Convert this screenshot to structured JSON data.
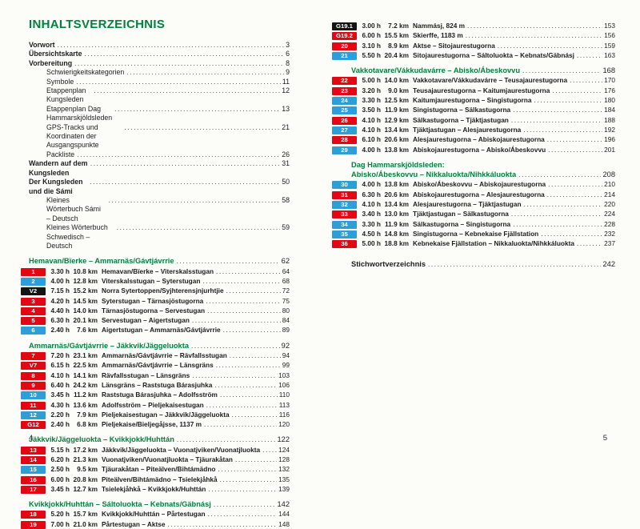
{
  "colors": {
    "accent_green": "#00813e",
    "badge_red": "#e30613",
    "badge_blue": "#2d9ed8",
    "badge_black": "#141414",
    "text": "#1d1d1b"
  },
  "left": {
    "title": "INHALTSVERZEICHNIS",
    "folio": "4",
    "front_matter": [
      {
        "label": "Vorwort",
        "page": "3",
        "bold": true,
        "indent": false
      },
      {
        "label": "Übersichtskarte",
        "page": "6",
        "bold": true,
        "indent": false
      },
      {
        "label": "Vorbereitung",
        "page": "8",
        "bold": true,
        "indent": false
      },
      {
        "label": "Schwierigkeitskategorien",
        "page": "9",
        "bold": false,
        "indent": true
      },
      {
        "label": "Symbole",
        "page": "11",
        "bold": false,
        "indent": true
      },
      {
        "label": "Etappenplan Kungsleden",
        "page": "12",
        "bold": false,
        "indent": true
      },
      {
        "label": "Etappenplan Dag Hammarskjöldsleden",
        "page": "13",
        "bold": false,
        "indent": true
      },
      {
        "label": "GPS-Tracks und Koordinaten der Ausgangspunkte",
        "page": "21",
        "bold": false,
        "indent": true
      },
      {
        "label": "Packliste",
        "page": "26",
        "bold": false,
        "indent": true
      },
      {
        "label": "Wandern auf dem Kungsleden",
        "page": "31",
        "bold": true,
        "indent": false
      },
      {
        "label": "Der Kungsleden und die Sámi",
        "page": "50",
        "bold": true,
        "indent": false
      },
      {
        "label": "Kleines Wörterbuch Sámi – Deutsch",
        "page": "58",
        "bold": false,
        "indent": true
      },
      {
        "label": "Kleines Wörterbuch Schwedisch – Deutsch",
        "page": "59",
        "bold": false,
        "indent": true
      }
    ],
    "sections": [
      {
        "title": "Hemavan/Bïerke – Ammarnäs/Gávtjávrrie",
        "page": "62",
        "stages": [
          {
            "badge": "1",
            "color": "red",
            "time": "3.30 h",
            "distance": "10.8 km",
            "route": "Hemavan/Bïerke – Viterskalsstugan",
            "page": "64"
          },
          {
            "badge": "2",
            "color": "blue",
            "time": "4.00 h",
            "distance": "12.8 km",
            "route": "Viterskalsstugan – Syterstugan",
            "page": "68"
          },
          {
            "badge": "V2",
            "color": "black",
            "time": "7.15 h",
            "distance": "15.2 km",
            "route": "Norra Sytertoppen/Syjhterensjnjurhtjie",
            "page": "72"
          },
          {
            "badge": "3",
            "color": "red",
            "time": "4.20 h",
            "distance": "14.5 km",
            "route": "Syterstugan – Tärnasjöstugorna",
            "page": "75"
          },
          {
            "badge": "4",
            "color": "red",
            "time": "4.40 h",
            "distance": "14.0 km",
            "route": "Tärnasjöstugorna – Servestugan",
            "page": "80"
          },
          {
            "badge": "5",
            "color": "red",
            "time": "6.30 h",
            "distance": "20.1 km",
            "route": "Servestugan – Aigertstugan",
            "page": "84"
          },
          {
            "badge": "6",
            "color": "blue",
            "time": "2.40 h",
            "distance": "7.6 km",
            "route": "Aigertstugan – Ammarnäs/Gávtjávrrie",
            "page": "89"
          }
        ]
      },
      {
        "title": "Ammarnäs/Gávtjávrrie – Jäkkvik/Jäggeluokta",
        "page": "92",
        "stages": [
          {
            "badge": "7",
            "color": "red",
            "time": "7.20 h",
            "distance": "23.1 km",
            "route": "Ammarnäs/Gávtjávrrie – Rävfallsstugan",
            "page": "94"
          },
          {
            "badge": "V7",
            "color": "red",
            "time": "6.15 h",
            "distance": "22.5 km",
            "route": "Ammarnäs/Gávtjávrrie – Länsgräns",
            "page": "99"
          },
          {
            "badge": "8",
            "color": "red",
            "time": "4.10 h",
            "distance": "14.1 km",
            "route": "Rävfallsstugan – Länsgräns",
            "page": "103"
          },
          {
            "badge": "9",
            "color": "red",
            "time": "6.40 h",
            "distance": "24.2 km",
            "route": "Länsgräns – Raststuga Bárasjuhka",
            "page": "106"
          },
          {
            "badge": "10",
            "color": "blue",
            "time": "3.45 h",
            "distance": "11.2 km",
            "route": "Raststuga Bárasjuhka – Adolfsström",
            "page": "110"
          },
          {
            "badge": "11",
            "color": "red",
            "time": "4.30 h",
            "distance": "13.6 km",
            "route": "Adolfsström – Pieljekaisestugan",
            "page": "113"
          },
          {
            "badge": "12",
            "color": "blue",
            "time": "2.20 h",
            "distance": "7.9 km",
            "route": "Pieljekaisestugan – Jäkkvik/Jäggeluokta",
            "page": "116"
          },
          {
            "badge": "G12",
            "color": "red",
            "time": "2.40 h",
            "distance": "6.8 km",
            "route": "Pieljekaise/Bieljegåjsse, 1137 m",
            "page": "120"
          }
        ]
      },
      {
        "title": "Jäkkvik/Jäggeluokta – Kvikkjokk/Huhttán",
        "page": "122",
        "stages": [
          {
            "badge": "13",
            "color": "red",
            "time": "5.15 h",
            "distance": "17.2 km",
            "route": "Jäkkvik/Jäggeluokta – Vuonatjviken/Vuonatjluokta",
            "page": "124"
          },
          {
            "badge": "14",
            "color": "red",
            "time": "6.20 h",
            "distance": "21.3 km",
            "route": "Vuonatjviken/Vuonatjluokta – Tjäurakåtan",
            "page": "128"
          },
          {
            "badge": "15",
            "color": "blue",
            "time": "2.50 h",
            "distance": "9.5 km",
            "route": "Tjäurakåtan – Piteälven/Bihtámädno",
            "page": "132"
          },
          {
            "badge": "16",
            "color": "red",
            "time": "6.00 h",
            "distance": "20.8 km",
            "route": "Piteälven/Bihtámädno – Tsielekjåhkå",
            "page": "135"
          },
          {
            "badge": "17",
            "color": "red",
            "time": "3.45 h",
            "distance": "12.7 km",
            "route": "Tsielekjåhkå – Kvikkjokk/Huhttán",
            "page": "139"
          }
        ]
      },
      {
        "title": "Kvikkjokk/Huhttán – Sáltoluokta – Kebnats/Gäbnásj",
        "page": "142",
        "stages": [
          {
            "badge": "18",
            "color": "red",
            "time": "5.20 h",
            "distance": "15.7 km",
            "route": "Kvikkjokk/Huhttán – Pårtestugan",
            "page": "144"
          },
          {
            "badge": "19",
            "color": "red",
            "time": "7.00 h",
            "distance": "21.0 km",
            "route": "Pårtestugan – Aktse",
            "page": "148"
          }
        ]
      }
    ]
  },
  "right": {
    "folio": "5",
    "sections": [
      {
        "title": "",
        "page": "",
        "stages": [
          {
            "badge": "G19.1",
            "color": "black",
            "time": "3.00 h",
            "distance": "7.2 km",
            "route": "Nammásj, 824 m",
            "page": "153"
          },
          {
            "badge": "G19.2",
            "color": "red",
            "time": "6.00 h",
            "distance": "15.5 km",
            "route": "Skierffe, 1183 m",
            "page": "156"
          },
          {
            "badge": "20",
            "color": "red",
            "time": "3.10 h",
            "distance": "8.9 km",
            "route": "Aktse – Sitojaurestugorna",
            "page": "159"
          },
          {
            "badge": "21",
            "color": "blue",
            "time": "5.50 h",
            "distance": "20.4 km",
            "route": "Sitojaurestugorna – Sáltoluokta – Kebnats/Gäbnásj",
            "page": "163"
          }
        ]
      },
      {
        "title": "Vakkotavare/Vákkudavárre – Abisko/Ábeskovvu",
        "page": "168",
        "stages": [
          {
            "badge": "22",
            "color": "red",
            "time": "5.00 h",
            "distance": "14.0 km",
            "route": "Vakkotavare/Vákkudavárre – Teusajaurestugorna",
            "page": "170"
          },
          {
            "badge": "23",
            "color": "red",
            "time": "3.20 h",
            "distance": "9.0 km",
            "route": "Teusajaurestugorna – Kaitumjaurestugorna",
            "page": "176"
          },
          {
            "badge": "24",
            "color": "blue",
            "time": "3.30 h",
            "distance": "12.5 km",
            "route": "Kaitumjaurestugorna – Singistugorna",
            "page": "180"
          },
          {
            "badge": "25",
            "color": "blue",
            "time": "3.50 h",
            "distance": "11.9 km",
            "route": "Singistugorna – Sälkastugorna",
            "page": "184"
          },
          {
            "badge": "26",
            "color": "red",
            "time": "4.10 h",
            "distance": "12.9 km",
            "route": "Sälkastugorna – Tjäktjastugan",
            "page": "188"
          },
          {
            "badge": "27",
            "color": "blue",
            "time": "4.10 h",
            "distance": "13.4 km",
            "route": "Tjäktjastugan – Alesjaurestugorna",
            "page": "192"
          },
          {
            "badge": "28",
            "color": "red",
            "time": "6.10 h",
            "distance": "20.6 km",
            "route": "Alesjaurestugorna – Abiskojaurestugorna",
            "page": "196"
          },
          {
            "badge": "29",
            "color": "blue",
            "time": "4.00 h",
            "distance": "13.8 km",
            "route": "Abiskojaurestugorna – Abisko/Ábeskovvu",
            "page": "201"
          }
        ]
      },
      {
        "pretitle": "Dag Hammarskjöldsleden:",
        "title": "Abisko/Ábeskovvu – Nikkaluokta/Nihkkáluokta",
        "page": "208",
        "stages": [
          {
            "badge": "30",
            "color": "blue",
            "time": "4.00 h",
            "distance": "13.8 km",
            "route": "Abisko/Ábeskovvu – Abiskojaurestugorna",
            "page": "210"
          },
          {
            "badge": "31",
            "color": "red",
            "time": "6.30 h",
            "distance": "20.6 km",
            "route": "Abiskojaurestugorna – Alesjaurestugorna",
            "page": "214"
          },
          {
            "badge": "32",
            "color": "blue",
            "time": "4.10 h",
            "distance": "13.4 km",
            "route": "Alesjaurestugorna – Tjäktjastugan",
            "page": "220"
          },
          {
            "badge": "33",
            "color": "red",
            "time": "3.40 h",
            "distance": "13.0 km",
            "route": "Tjäktjastugan – Sälkastugorna",
            "page": "224"
          },
          {
            "badge": "34",
            "color": "blue",
            "time": "3.30 h",
            "distance": "11.9 km",
            "route": "Sälkastugorna – Singistugorna",
            "page": "228"
          },
          {
            "badge": "35",
            "color": "blue",
            "time": "4.50 h",
            "distance": "14.8 km",
            "route": "Singistugorna – Kebnekaise Fjällstation",
            "page": "232"
          },
          {
            "badge": "36",
            "color": "red",
            "time": "5.00 h",
            "distance": "18.8 km",
            "route": "Kebnekaise Fjällstation – Nikkaluokta/Nihkkáluokta",
            "page": "237"
          }
        ]
      }
    ],
    "index_entry": {
      "label": "Stichwortverzeichnis",
      "page": "242"
    }
  }
}
